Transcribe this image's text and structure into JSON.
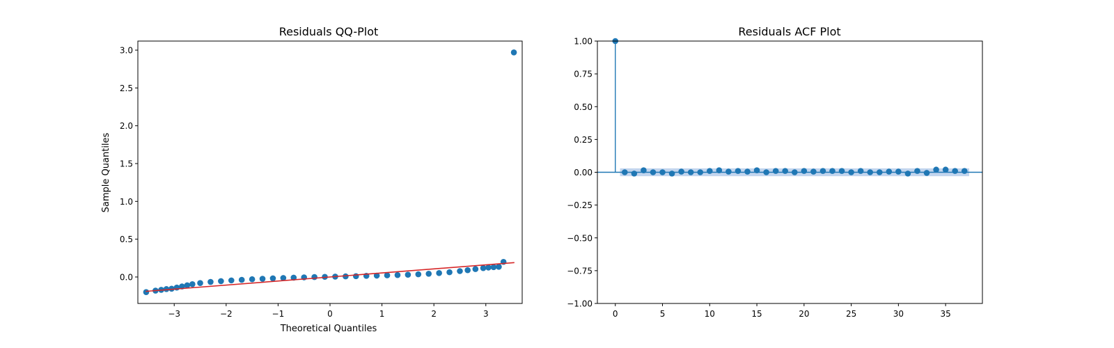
{
  "chart_data": [
    {
      "type": "scatter",
      "title": "Residuals QQ-Plot",
      "xlabel": "Theoretical Quantiles",
      "ylabel": "Sample Quantiles",
      "xlim": [
        -3.7,
        3.7
      ],
      "ylim": [
        -0.35,
        3.12
      ],
      "xticks": [
        -3,
        -2,
        -1,
        0,
        1,
        2,
        3
      ],
      "xtick_labels": [
        "−3",
        "−2",
        "−1",
        "0",
        "1",
        "2",
        "3"
      ],
      "yticks": [
        0.0,
        0.5,
        1.0,
        1.5,
        2.0,
        2.5,
        3.0
      ],
      "ytick_labels": [
        "0.0",
        "0.5",
        "1.0",
        "1.5",
        "2.0",
        "2.5",
        "3.0"
      ],
      "grid": false,
      "point_color": "#1f77b4",
      "line_color": "#d62728",
      "reference_line": {
        "x": [
          -3.55,
          3.55
        ],
        "y": [
          -0.19,
          0.19
        ]
      },
      "series": [
        {
          "x": [
            -3.54,
            -3.36,
            -3.25,
            -3.15,
            -3.05,
            -2.95,
            -2.85,
            -2.75,
            -2.65,
            -2.5,
            -2.3,
            -2.1,
            -1.9,
            -1.7,
            -1.5,
            -1.3,
            -1.1,
            -0.9,
            -0.7,
            -0.5,
            -0.3,
            -0.1,
            0.1,
            0.3,
            0.5,
            0.7,
            0.9,
            1.1,
            1.3,
            1.5,
            1.7,
            1.9,
            2.1,
            2.3,
            2.5,
            2.65,
            2.8,
            2.95,
            3.05,
            3.15,
            3.25,
            3.34,
            3.54
          ],
          "y": [
            -0.2,
            -0.18,
            -0.17,
            -0.16,
            -0.155,
            -0.14,
            -0.125,
            -0.11,
            -0.095,
            -0.08,
            -0.065,
            -0.055,
            -0.045,
            -0.038,
            -0.03,
            -0.024,
            -0.018,
            -0.013,
            -0.009,
            -0.005,
            -0.001,
            0.002,
            0.005,
            0.008,
            0.011,
            0.015,
            0.018,
            0.022,
            0.026,
            0.03,
            0.036,
            0.043,
            0.052,
            0.063,
            0.078,
            0.09,
            0.105,
            0.118,
            0.125,
            0.13,
            0.135,
            0.2,
            2.97
          ]
        }
      ]
    },
    {
      "type": "stem",
      "title": "Residuals ACF Plot",
      "xlabel": "",
      "ylabel": "",
      "xlim": [
        -1.9,
        38.9
      ],
      "ylim": [
        -1.0,
        1.0
      ],
      "xticks": [
        0,
        5,
        10,
        15,
        20,
        25,
        30,
        35
      ],
      "xtick_labels": [
        "0",
        "5",
        "10",
        "15",
        "20",
        "25",
        "30",
        "35"
      ],
      "yticks": [
        -1.0,
        -0.75,
        -0.5,
        -0.25,
        0.0,
        0.25,
        0.5,
        0.75,
        1.0
      ],
      "ytick_labels": [
        "−1.00",
        "−0.75",
        "−0.50",
        "−0.25",
        "0.00",
        "0.25",
        "0.50",
        "0.75",
        "1.00"
      ],
      "grid": false,
      "point_color": "#1f77b4",
      "confidence_band": {
        "lower": -0.03,
        "upper": 0.03,
        "x_range": [
          0.5,
          37.5
        ],
        "color": "#aec7e8"
      },
      "lags": [
        0,
        1,
        2,
        3,
        4,
        5,
        6,
        7,
        8,
        9,
        10,
        11,
        12,
        13,
        14,
        15,
        16,
        17,
        18,
        19,
        20,
        21,
        22,
        23,
        24,
        25,
        26,
        27,
        28,
        29,
        30,
        31,
        32,
        33,
        34,
        35,
        36,
        37
      ],
      "values": [
        1.0,
        0.0,
        -0.01,
        0.015,
        0.0,
        0.0,
        -0.01,
        0.005,
        0.0,
        0.0,
        0.01,
        0.015,
        0.005,
        0.01,
        0.005,
        0.015,
        0.0,
        0.01,
        0.01,
        0.0,
        0.01,
        0.005,
        0.01,
        0.01,
        0.01,
        0.0,
        0.01,
        0.0,
        0.0,
        0.005,
        0.005,
        -0.01,
        0.01,
        -0.005,
        0.02,
        0.02,
        0.01,
        0.01
      ]
    }
  ]
}
